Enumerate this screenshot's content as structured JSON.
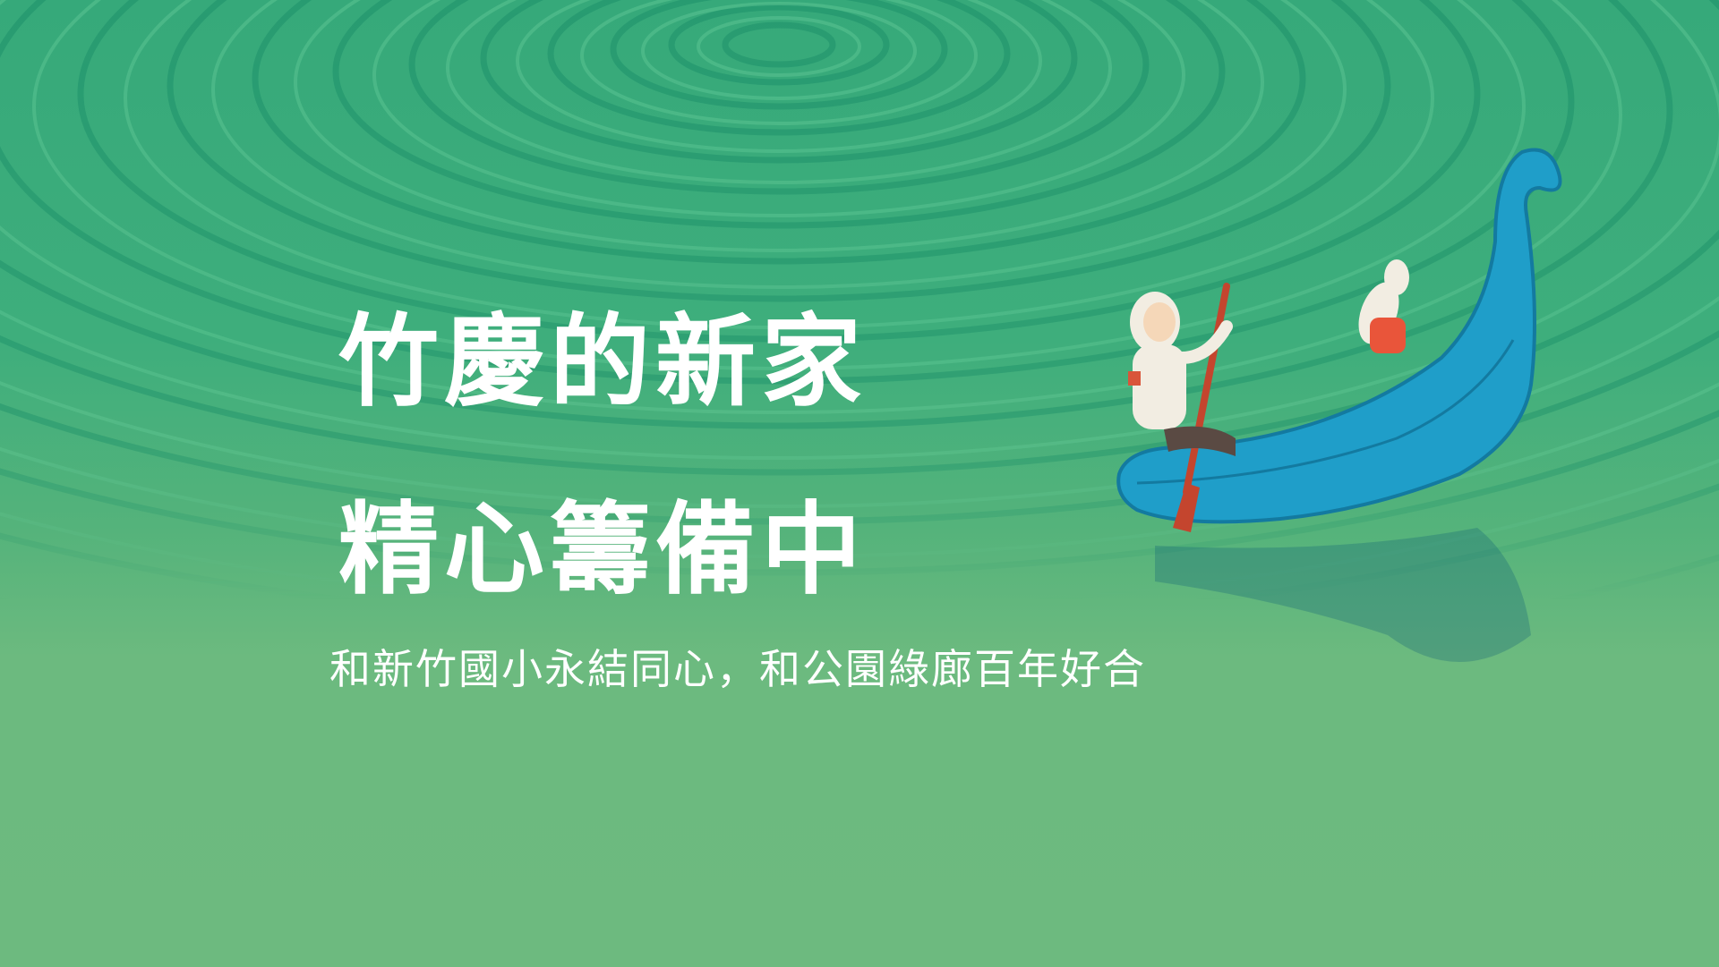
{
  "hero": {
    "title_line1": "竹慶的新家",
    "title_line2": "精心籌備中",
    "subtitle": "和新竹國小永結同心，和公園綠廊百年好合"
  },
  "colors": {
    "background_top": "#36a97a",
    "background_bottom": "#6dba7f",
    "text": "#ffffff",
    "boat": "#1f9ec9"
  },
  "illustration": {
    "icon": "child-and-dog-rowing-boat-illustration"
  }
}
